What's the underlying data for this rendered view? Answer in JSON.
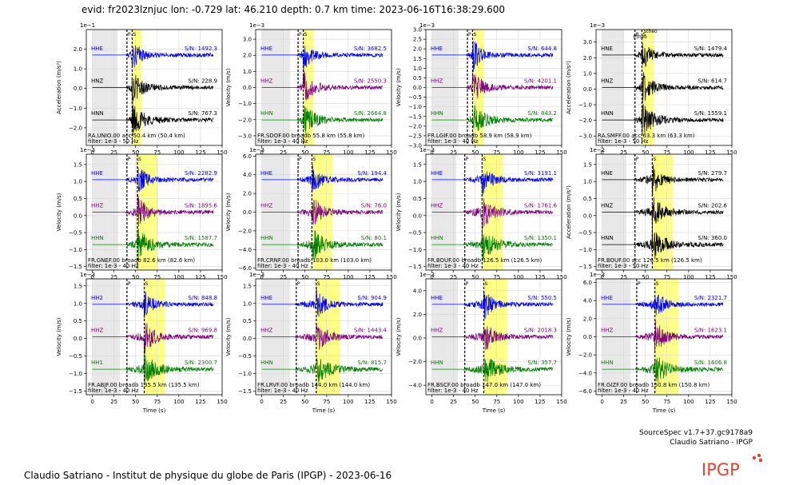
{
  "header": {
    "title": "evid: fr2023lznjuc lon: -0.729 lat: 46.210 depth: 0.7 km time: 2023-06-16T16:38:29.600"
  },
  "footer": {
    "version": "SourceSpec v1.7+37.gc9178a9",
    "author": "Claudio Satriano - IPGP",
    "credit": "Claudio Satriano - Institut de physique du globe de Paris (IPGP) - 2023-06-16",
    "logo_text": "IPGP"
  },
  "style": {
    "colors": {
      "HHE": "#0000ff",
      "HH2": "#0000ff",
      "HHZ": "#800080",
      "HHN": "#008000",
      "HH1": "#008000",
      "noise_window": "#e8e8e8",
      "signal_window": "#ffff88",
      "logo": "#e8422b"
    }
  },
  "chart_data": {
    "type": "line",
    "xlabel": "Time (s)",
    "xlim": [
      -7,
      150
    ],
    "xticks": [
      0,
      25,
      50,
      75,
      100,
      125,
      150
    ],
    "panels": [
      {
        "station": "RA.UNIO.00",
        "instr": "acc",
        "dist": "50.4 km (50.4 km)",
        "filter": "filter: 1e-3 - 50 Hz",
        "ylabel": "Acceleration (m/s²)",
        "exponent": "1e−1",
        "ylim": [
          -2.9,
          3.0
        ],
        "yticks": [
          -2.0,
          -1.0,
          0.0,
          1.0,
          2.0
        ],
        "p": 40,
        "s": 46,
        "noise": [
          0,
          29
        ],
        "signal": [
          46,
          57
        ],
        "traces": [
          {
            "ch": "HHE",
            "sn": "S/N: 1492.3"
          },
          {
            "ch": "HNZ",
            "sn": "S/N: 228.9"
          },
          {
            "ch": "HNN",
            "sn": "S/N: 767.3"
          }
        ]
      },
      {
        "station": "FR.SDOF.00",
        "instr": "broadb",
        "dist": "55.8 km (55.8 km)",
        "filter": "filter: 1e-3 - 40 Hz",
        "ylabel": "Velocity (m/s)",
        "exponent": "1e−3",
        "ylim": [
          -3.6,
          3.6
        ],
        "yticks": [
          -3.0,
          -2.0,
          -1.0,
          0.0,
          1.0,
          2.0,
          3.0
        ],
        "p": 42,
        "s": 48,
        "noise": [
          0,
          33
        ],
        "signal": [
          48,
          60
        ],
        "traces": [
          {
            "ch": "HHE",
            "sn": "S/N: 3682.5"
          },
          {
            "ch": "HHZ",
            "sn": "S/N: 2550.3"
          },
          {
            "ch": "HHN",
            "sn": "S/N: 2664.8"
          }
        ]
      },
      {
        "station": "FR.LGIF.00",
        "instr": "broadb",
        "dist": "58.9 km (58.9 km)",
        "filter": "filter: 1e-3 - 40 Hz",
        "ylabel": "Velocity (m/s)",
        "exponent": "1e−3",
        "ylim": [
          -3.0,
          3.0
        ],
        "yticks": [
          -3.0,
          -2.5,
          -2.0,
          -1.5,
          -1.0,
          -0.5,
          0.0,
          0.5,
          1.0,
          1.5,
          2.0,
          2.5,
          3.0
        ],
        "p": 41,
        "s": 47,
        "noise": [
          0,
          31
        ],
        "signal": [
          47,
          60
        ],
        "traces": [
          {
            "ch": "HHE",
            "sn": "S/N: 644.8"
          },
          {
            "ch": "HHZ",
            "sn": "S/N: 4201.1"
          },
          {
            "ch": "HHN",
            "sn": "S/N: 843.2"
          }
        ]
      },
      {
        "station": "RA.SMFF.00",
        "instr": "acc",
        "dist": "63.3 km (63.3 km)",
        "filter": "filter: 1e-3 - 50 Hz",
        "ylabel": "Acceleration (m/s²)",
        "exponent": "1e−3",
        "ylim": [
          -3.6,
          3.8
        ],
        "yticks": [
          -3.0,
          -2.0,
          -1.0,
          0.0,
          1.0,
          2.0,
          3.0
        ],
        "p": 38,
        "s": 46,
        "noise": [
          0,
          25
        ],
        "signal": [
          46,
          60
        ],
        "theo": [
          "Stheo",
          "Ptheo"
        ],
        "traces": [
          {
            "ch": "HNE",
            "sn": "S/N: 1479.4"
          },
          {
            "ch": "HNZ",
            "sn": "S/N: 614.7"
          },
          {
            "ch": "HNN",
            "sn": "S/N: 1559.1"
          }
        ]
      },
      {
        "station": "FR.GNEF.00",
        "instr": "broadb",
        "dist": "82.6 km (82.6 km)",
        "filter": "filter: 1e-3 - 40 Hz",
        "ylabel": "Velocity (m/s)",
        "exponent": "1e−3",
        "ylim": [
          -1.6,
          1.8
        ],
        "yticks": [
          -1.5,
          -1.0,
          -0.5,
          0.0,
          0.5,
          1.0,
          1.5
        ],
        "p": 40,
        "s": 52,
        "noise": [
          0,
          30
        ],
        "signal": [
          52,
          76
        ],
        "traces": [
          {
            "ch": "HHE",
            "sn": "S/N: 2282.9"
          },
          {
            "ch": "HHZ",
            "sn": "S/N: 1895.6"
          },
          {
            "ch": "HHN",
            "sn": "S/N: 1587.7"
          }
        ]
      },
      {
        "station": "FR.CRNF.00",
        "instr": "broadb",
        "dist": "103.0 km (103.0 km)",
        "filter": "filter: 1e-3 - 40 Hz",
        "ylabel": "Velocity (m/s)",
        "exponent": "1e−3",
        "ylim": [
          -6.2,
          6.2
        ],
        "yticks": [
          -6.0,
          -4.0,
          -2.0,
          0.0,
          2.0,
          4.0,
          6.0
        ],
        "p": 42,
        "s": 58,
        "noise": [
          0,
          33
        ],
        "signal": [
          58,
          82
        ],
        "traces": [
          {
            "ch": "HHE",
            "sn": "S/N: 194.4"
          },
          {
            "ch": "HHZ",
            "sn": "S/N: 76.0"
          },
          {
            "ch": "HHN",
            "sn": "S/N: 80.1"
          }
        ]
      },
      {
        "station": "FR.BOUF.00",
        "instr": "broadb",
        "dist": "126.5 km (126.5 km)",
        "filter": "filter: 1e-3 - 40 Hz",
        "ylabel": "Velocity (m/s)",
        "exponent": "1e−3",
        "ylim": [
          -1.6,
          1.8
        ],
        "yticks": [
          -1.5,
          -1.0,
          -0.5,
          0.0,
          0.5,
          1.0,
          1.5
        ],
        "p": 38,
        "s": 58,
        "noise": [
          0,
          28
        ],
        "signal": [
          58,
          82
        ],
        "traces": [
          {
            "ch": "HHE",
            "sn": "S/N: 3191.1"
          },
          {
            "ch": "HHZ",
            "sn": "S/N: 1761.6"
          },
          {
            "ch": "HHN",
            "sn": "S/N: 1350.1"
          }
        ]
      },
      {
        "station": "FR.BOUF.00",
        "instr": "acc",
        "dist": "126.5 km (126.5 km)",
        "filter": "filter: 1e-3 - 50 Hz",
        "ylabel": "Acceleration (m/s²)",
        "exponent": "1e−2",
        "ylim": [
          -1.6,
          1.8
        ],
        "yticks": [
          -1.5,
          -1.0,
          -0.5,
          0.0,
          0.5,
          1.0,
          1.5
        ],
        "p": 38,
        "s": 58,
        "noise": [
          0,
          28
        ],
        "signal": [
          58,
          82
        ],
        "traces": [
          {
            "ch": "HNE",
            "sn": "S/N: 279.7"
          },
          {
            "ch": "HNZ",
            "sn": "S/N: 202.6"
          },
          {
            "ch": "HNN",
            "sn": "S/N: 360.0"
          }
        ]
      },
      {
        "station": "FR.ABJF.00",
        "instr": "broadb",
        "dist": "135.5 km (135.5 km)",
        "filter": "filter: 1e-3 - 40 Hz",
        "ylabel": "Velocity (m/s)",
        "exponent": "1e−3",
        "ylim": [
          -1.6,
          1.7
        ],
        "yticks": [
          -1.5,
          -1.0,
          -0.5,
          0.0,
          0.5,
          1.0,
          1.5
        ],
        "p": 40,
        "s": 60,
        "noise": [
          0,
          32
        ],
        "signal": [
          60,
          84
        ],
        "traces": [
          {
            "ch": "HH2",
            "sn": "S/N: 848.8"
          },
          {
            "ch": "HHZ",
            "sn": "S/N: 969.8"
          },
          {
            "ch": "HH1",
            "sn": "S/N: 2300.7"
          }
        ]
      },
      {
        "station": "FR.LRVF.00",
        "instr": "broadb",
        "dist": "144.0 km (144.0 km)",
        "filter": "filter: 1e-3 - 40 Hz",
        "ylabel": "Velocity (m/s)",
        "exponent": "1e−3",
        "ylim": [
          -1.6,
          1.7
        ],
        "yticks": [
          -1.5,
          -1.0,
          -0.5,
          0.0,
          0.5,
          1.0,
          1.5
        ],
        "p": 40,
        "s": 63,
        "noise": [
          0,
          33
        ],
        "signal": [
          63,
          90
        ],
        "traces": [
          {
            "ch": "HHE",
            "sn": "S/N: 904.9"
          },
          {
            "ch": "HHZ",
            "sn": "S/N: 1443.4"
          },
          {
            "ch": "HHN",
            "sn": "S/N: 815.7"
          }
        ]
      },
      {
        "station": "FR.BSCF.00",
        "instr": "broadb",
        "dist": "147.0 km (147.0 km)",
        "filter": "filter: 1e-3 - 40 Hz",
        "ylabel": "Velocity (m/s)",
        "exponent": "1e−3",
        "ylim": [
          -4.8,
          5.0
        ],
        "yticks": [
          -4.0,
          -2.0,
          0.0,
          2.0,
          4.0
        ],
        "p": 38,
        "s": 60,
        "noise": [
          0,
          30
        ],
        "signal": [
          60,
          87
        ],
        "traces": [
          {
            "ch": "HHE",
            "sn": "S/N: 550.5"
          },
          {
            "ch": "HHZ",
            "sn": "S/N: 2018.3"
          },
          {
            "ch": "HHN",
            "sn": "S/N: 357.7"
          }
        ]
      },
      {
        "station": "FR.GIZF.00",
        "instr": "broadb",
        "dist": "150.8 km (150.8 km)",
        "filter": "filter: 1e-3 - 40 Hz",
        "ylabel": "Velocity (m/s)",
        "exponent": "1e−3",
        "ylim": [
          -6.4,
          6.4
        ],
        "yticks": [
          -6.0,
          -4.0,
          -2.0,
          0.0,
          2.0,
          4.0,
          6.0
        ],
        "p": 40,
        "s": 61,
        "noise": [
          0,
          33
        ],
        "signal": [
          61,
          88
        ],
        "traces": [
          {
            "ch": "HHE",
            "sn": "S/N: 2321.7"
          },
          {
            "ch": "HHZ",
            "sn": "S/N: 1623.1"
          },
          {
            "ch": "HHN",
            "sn": "S/N: 1606.8"
          }
        ]
      }
    ]
  }
}
